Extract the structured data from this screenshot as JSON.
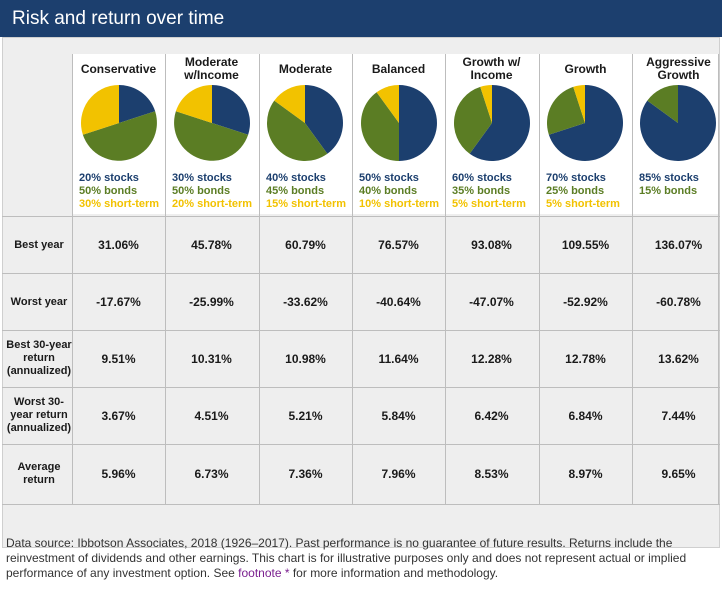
{
  "title": "Risk and return over time",
  "colors": {
    "stocks": "#1c3f6e",
    "bonds": "#5b7d24",
    "short_term": "#f2c200",
    "header": "#1c3f6e"
  },
  "chart_data": {
    "type": "table",
    "title": "Risk and return over time",
    "portfolios": [
      {
        "name": "Conservative",
        "stocks": 20,
        "bonds": 50,
        "short_term": 30,
        "labels": [
          "20% stocks",
          "50% bonds",
          "30% short-term"
        ]
      },
      {
        "name": "Moderate w/Income",
        "stocks": 30,
        "bonds": 50,
        "short_term": 20,
        "labels": [
          "30% stocks",
          "50% bonds",
          "20% short-term"
        ]
      },
      {
        "name": "Moderate",
        "stocks": 40,
        "bonds": 45,
        "short_term": 15,
        "labels": [
          "40% stocks",
          "45% bonds",
          "15% short-term"
        ]
      },
      {
        "name": "Balanced",
        "stocks": 50,
        "bonds": 40,
        "short_term": 10,
        "labels": [
          "50% stocks",
          "40% bonds",
          "10% short-term"
        ]
      },
      {
        "name": "Growth w/ Income",
        "stocks": 60,
        "bonds": 35,
        "short_term": 5,
        "labels": [
          "60% stocks",
          "35% bonds",
          "5% short-term"
        ]
      },
      {
        "name": "Growth",
        "stocks": 70,
        "bonds": 25,
        "short_term": 5,
        "labels": [
          "70% stocks",
          "25% bonds",
          "5% short-term"
        ]
      },
      {
        "name": "Aggressive Growth",
        "stocks": 85,
        "bonds": 15,
        "short_term": 0,
        "labels": [
          "85% stocks",
          "15% bonds"
        ]
      }
    ],
    "rows": [
      {
        "label": "Best year",
        "values": [
          "31.06%",
          "45.78%",
          "60.79%",
          "76.57%",
          "93.08%",
          "109.55%",
          "136.07%"
        ]
      },
      {
        "label": "Worst year",
        "values": [
          "-17.67%",
          "-25.99%",
          "-33.62%",
          "-40.64%",
          "-47.07%",
          "-52.92%",
          "-60.78%"
        ]
      },
      {
        "label": "Best 30-year return (annualized)",
        "values": [
          "9.51%",
          "10.31%",
          "10.98%",
          "11.64%",
          "12.28%",
          "12.78%",
          "13.62%"
        ]
      },
      {
        "label": "Worst 30-year return (annualized)",
        "values": [
          "3.67%",
          "4.51%",
          "5.21%",
          "5.84%",
          "6.42%",
          "6.84%",
          "7.44%"
        ]
      },
      {
        "label": "Average return",
        "values": [
          "5.96%",
          "6.73%",
          "7.36%",
          "7.96%",
          "8.53%",
          "8.97%",
          "9.65%"
        ]
      }
    ]
  },
  "footnote": {
    "text_before": "Data source: Ibbotson Associates, 2018 (1926–2017). Past performance is no guarantee of future results. Returns include the reinvestment of dividends and other earnings. This chart is for illustrative purposes only and does not represent actual or implied performance of any investment option. See ",
    "link": "footnote *",
    "text_after": " for more information and methodology."
  }
}
